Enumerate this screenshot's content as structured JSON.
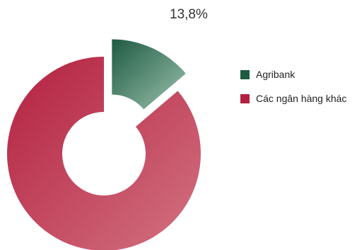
{
  "chart_data": {
    "type": "pie",
    "style": "donut",
    "title": "",
    "slices": [
      {
        "label": "Agribank",
        "value": 13.8,
        "display": "13,8%",
        "exploded": true,
        "color": "#1f5a43",
        "color_light": "#9cc3ae"
      },
      {
        "label": "Các ngân hàng khác",
        "value": 86.2,
        "display": "",
        "exploded": false,
        "color": "#b3203f",
        "color_light": "#d37282"
      }
    ],
    "legend": {
      "placement": "right"
    }
  }
}
